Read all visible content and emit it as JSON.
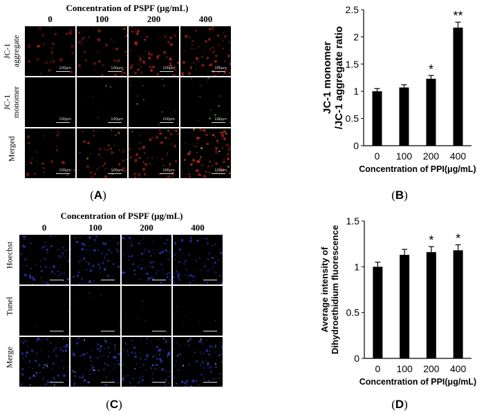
{
  "panel_a": {
    "title": "Concentration of PSPF (μg/mL)",
    "columns": [
      "0",
      "100",
      "200",
      "400"
    ],
    "rows": [
      {
        "label_line1": "JC-1",
        "label_line2": "aggregate"
      },
      {
        "label_line1": "JC-1",
        "label_line2": "monomer"
      },
      {
        "label_line1": "Merged",
        "label_line2": ""
      }
    ],
    "scale_text": "100μm",
    "label": "A"
  },
  "panel_c": {
    "title": "Concentration of PSPF (μg/mL)",
    "columns": [
      "0",
      "100",
      "200",
      "400"
    ],
    "rows": [
      {
        "label_line1": "Hoechst",
        "label_line2": ""
      },
      {
        "label_line1": "Tunel",
        "label_line2": ""
      },
      {
        "label_line1": "Merge",
        "label_line2": ""
      }
    ],
    "label": "C"
  },
  "panel_b_label": "B",
  "panel_d_label": "D",
  "colors": {
    "aggregate_red": "#c0261c",
    "monomer_green": "#3fae3a",
    "hoechst_blue": "#3b3bd8",
    "bar": "#000000"
  },
  "chart_data": [
    {
      "type": "bar",
      "panel": "B",
      "categories": [
        "0",
        "100",
        "200",
        "400"
      ],
      "values": [
        1.0,
        1.07,
        1.23,
        2.17
      ],
      "errors": [
        0.05,
        0.05,
        0.06,
        0.1
      ],
      "significance": [
        "",
        "",
        "*",
        "**"
      ],
      "ylabel_line1": "JC-1 monomer",
      "ylabel_line2": "/JC-1 aggregate ratio",
      "xlabel": "Concentration of PPI(μg/mL)",
      "ylim": [
        0,
        2.5
      ],
      "yticks": [
        "0",
        "0.5",
        "1",
        "1.5",
        "2",
        "2.5"
      ]
    },
    {
      "type": "bar",
      "panel": "D",
      "categories": [
        "0",
        "100",
        "200",
        "400"
      ],
      "values": [
        1.0,
        1.13,
        1.16,
        1.18
      ],
      "errors": [
        0.05,
        0.06,
        0.06,
        0.06
      ],
      "significance": [
        "",
        "",
        "*",
        "*"
      ],
      "ylabel_line1": "Average intensity of",
      "ylabel_line2": "Dihydroethidium fluorescence",
      "xlabel": "Concentration of PPI(μg/mL)",
      "ylim": [
        0,
        1.5
      ],
      "yticks": [
        "0",
        "0.5",
        "1",
        "1.5"
      ]
    }
  ]
}
